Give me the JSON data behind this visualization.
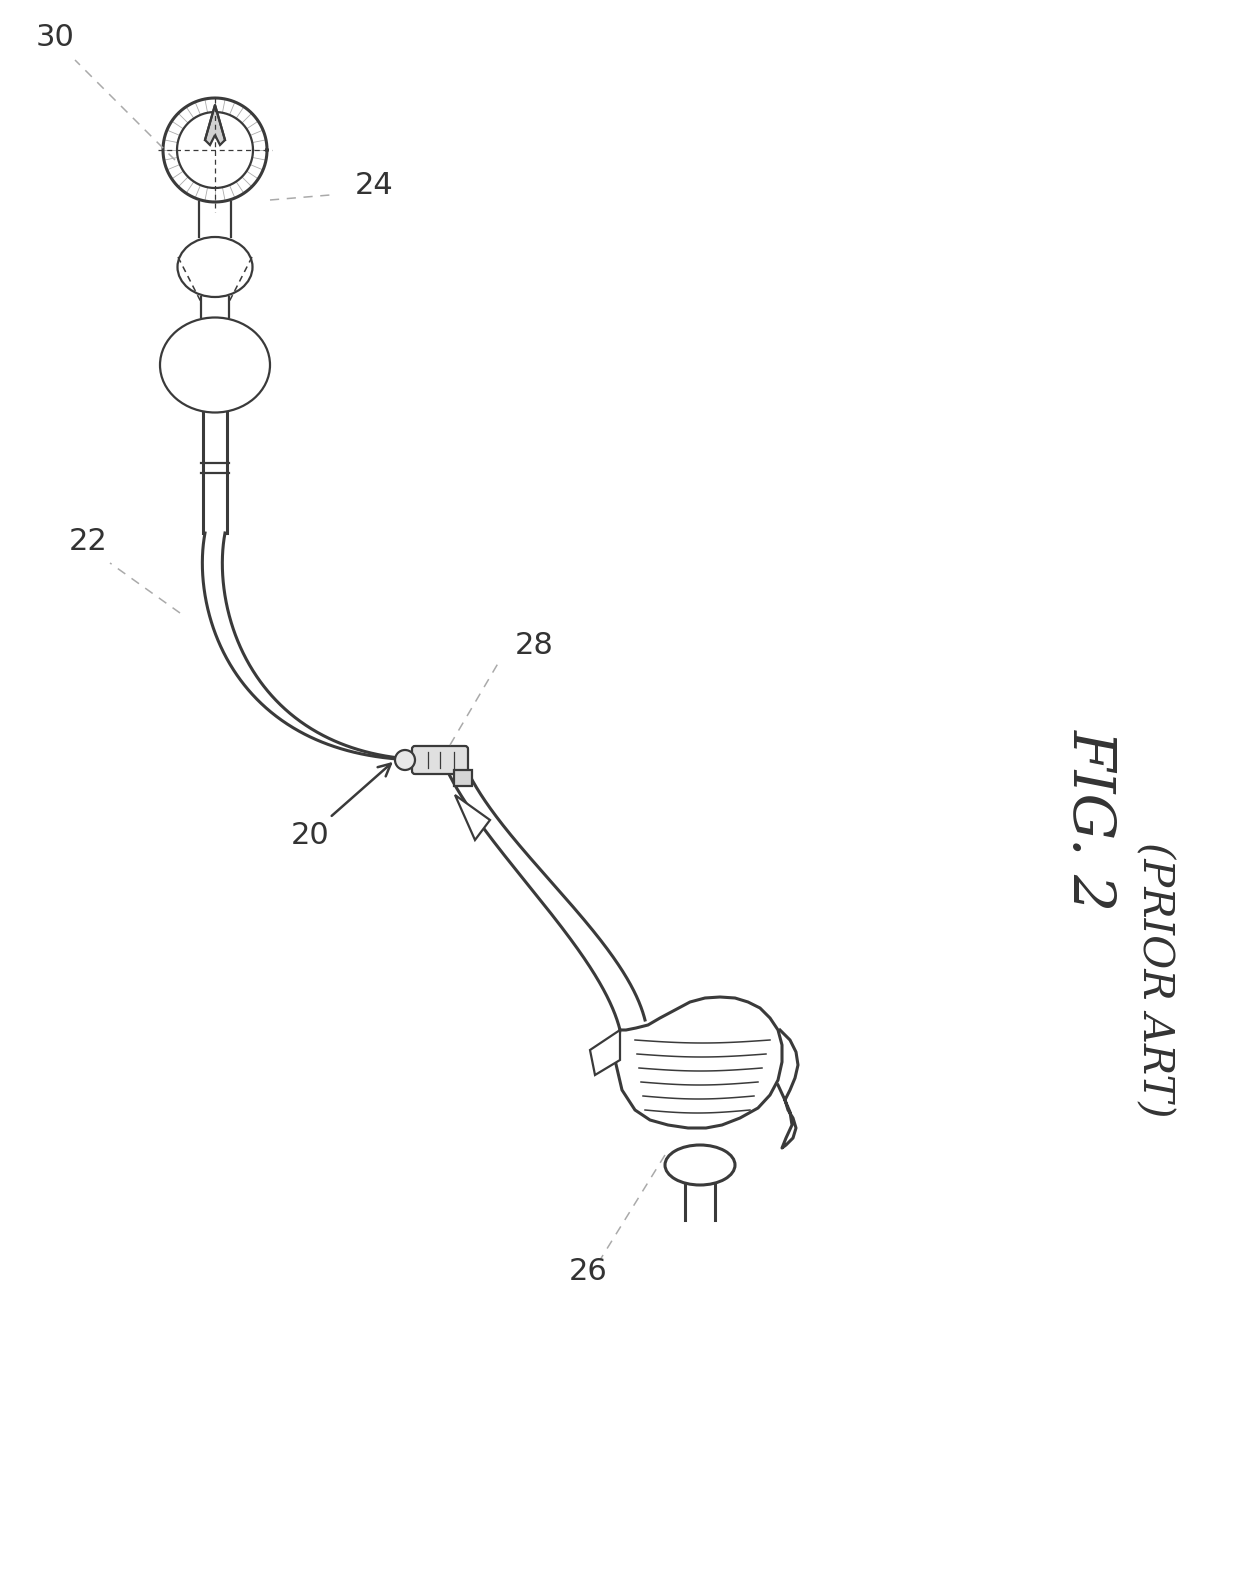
{
  "figure_label": "FIG. 2",
  "prior_art_label": "(PRIOR ART)",
  "line_color": "#3a3a3a",
  "bg_color": "#ffffff",
  "dashed_color": "#999999",
  "lw_main": 1.6,
  "lw_thick": 2.2,
  "lw_thin": 1.1
}
